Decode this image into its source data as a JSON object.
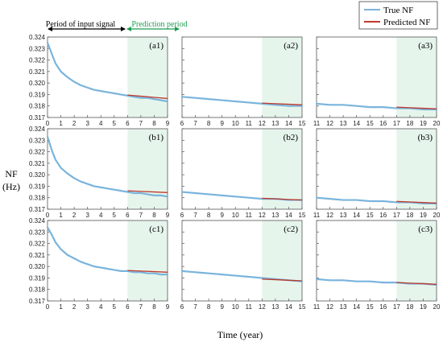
{
  "figure": {
    "ylabel_line1": "NF",
    "ylabel_line2": "(Hz)",
    "xlabel": "Time (year)",
    "input_period_label": "Period of input signal",
    "prediction_period_label": "Prediction period",
    "colors": {
      "true": "#7ab4dc",
      "predicted": "#c0392b",
      "prediction_shade": "#e6f5ec",
      "prediction_text": "#1e9c52",
      "arrow_black": "#000000",
      "arrow_green": "#1e9c52"
    }
  },
  "chart_data": {
    "type": "line",
    "legend": {
      "position": "top-right",
      "entries": [
        {
          "label": "True NF",
          "color": "#7ab4dc"
        },
        {
          "label": "Predicted NF",
          "color": "#c0392b"
        }
      ]
    },
    "ylim": [
      0.317,
      0.324
    ],
    "yticks": [
      0.317,
      0.318,
      0.319,
      0.32,
      0.321,
      0.322,
      0.323,
      0.324
    ],
    "ytick_labels": [
      "0.317",
      "0.318",
      "0.319",
      "0.320",
      "0.321",
      "0.322",
      "0.323",
      "0.324"
    ],
    "grid": false,
    "panels": [
      {
        "label": "(a1)",
        "xlim": [
          0,
          9
        ],
        "xticks": [
          0,
          1,
          2,
          3,
          4,
          5,
          6,
          7,
          8,
          9
        ],
        "prediction_start": 6,
        "true_x": [
          0,
          0.3,
          0.6,
          1,
          1.5,
          2,
          2.5,
          3,
          3.5,
          4,
          4.5,
          5,
          5.5,
          6,
          6.5,
          7,
          7.5,
          8,
          8.5,
          9
        ],
        "true_y": [
          0.3235,
          0.3226,
          0.3217,
          0.321,
          0.3205,
          0.3201,
          0.3198,
          0.3196,
          0.3194,
          0.3193,
          0.3192,
          0.3191,
          0.319,
          0.3189,
          0.3188,
          0.3187,
          0.3187,
          0.3186,
          0.3185,
          0.3184
        ],
        "pred_x": [
          6,
          7,
          8,
          9
        ],
        "pred_y": [
          0.31895,
          0.31885,
          0.31875,
          0.31865
        ]
      },
      {
        "label": "(a2)",
        "xlim": [
          6,
          15
        ],
        "xticks": [
          6,
          7,
          8,
          9,
          10,
          11,
          12,
          13,
          14,
          15
        ],
        "prediction_start": 12,
        "true_x": [
          6,
          7,
          8,
          9,
          10,
          11,
          12,
          13,
          14,
          15
        ],
        "true_y": [
          0.3188,
          0.3187,
          0.3186,
          0.3185,
          0.3184,
          0.3183,
          0.3182,
          0.3181,
          0.318,
          0.318
        ],
        "pred_x": [
          12,
          13,
          14,
          15
        ],
        "pred_y": [
          0.31825,
          0.3182,
          0.31815,
          0.3181
        ]
      },
      {
        "label": "(a3)",
        "xlim": [
          11,
          20
        ],
        "xticks": [
          11,
          12,
          13,
          14,
          15,
          16,
          17,
          18,
          19,
          20
        ],
        "prediction_start": 17,
        "true_x": [
          11,
          12,
          13,
          14,
          15,
          16,
          17,
          18,
          19,
          20
        ],
        "true_y": [
          0.3182,
          0.3181,
          0.3181,
          0.318,
          0.3179,
          0.3179,
          0.3178,
          0.3178,
          0.3177,
          0.3177
        ],
        "pred_x": [
          17,
          18,
          19,
          20
        ],
        "pred_y": [
          0.3179,
          0.31785,
          0.3178,
          0.31775
        ]
      },
      {
        "label": "(b1)",
        "xlim": [
          0,
          9
        ],
        "xticks": [
          0,
          1,
          2,
          3,
          4,
          5,
          6,
          7,
          8,
          9
        ],
        "prediction_start": 6,
        "true_x": [
          0,
          0.3,
          0.6,
          1,
          1.5,
          2,
          2.5,
          3,
          3.5,
          4,
          4.5,
          5,
          5.5,
          6,
          6.5,
          7,
          7.5,
          8,
          8.5,
          9
        ],
        "true_y": [
          0.3233,
          0.3222,
          0.3213,
          0.3206,
          0.3201,
          0.3197,
          0.3194,
          0.3192,
          0.319,
          0.3189,
          0.3188,
          0.3187,
          0.3186,
          0.3185,
          0.3184,
          0.3184,
          0.3183,
          0.3182,
          0.3182,
          0.3181
        ],
        "pred_x": [
          6,
          7,
          8,
          9
        ],
        "pred_y": [
          0.3186,
          0.31855,
          0.3185,
          0.31845
        ]
      },
      {
        "label": "(b2)",
        "xlim": [
          6,
          15
        ],
        "xticks": [
          6,
          7,
          8,
          9,
          10,
          11,
          12,
          13,
          14,
          15
        ],
        "prediction_start": 12,
        "true_x": [
          6,
          7,
          8,
          9,
          10,
          11,
          12,
          13,
          14,
          15
        ],
        "true_y": [
          0.3185,
          0.3184,
          0.3183,
          0.3182,
          0.3181,
          0.318,
          0.3179,
          0.3179,
          0.3178,
          0.3178
        ],
        "pred_x": [
          12,
          13,
          14,
          15
        ],
        "pred_y": [
          0.31795,
          0.3179,
          0.31785,
          0.3178
        ]
      },
      {
        "label": "(b3)",
        "xlim": [
          11,
          20
        ],
        "xticks": [
          11,
          12,
          13,
          14,
          15,
          16,
          17,
          18,
          19,
          20
        ],
        "prediction_start": 17,
        "true_x": [
          11,
          12,
          13,
          14,
          15,
          16,
          17,
          18,
          19,
          20
        ],
        "true_y": [
          0.318,
          0.3179,
          0.3178,
          0.3178,
          0.3177,
          0.3177,
          0.3176,
          0.3176,
          0.3175,
          0.3175
        ],
        "pred_x": [
          17,
          18,
          19,
          20
        ],
        "pred_y": [
          0.31768,
          0.31763,
          0.31758,
          0.31753
        ]
      },
      {
        "label": "(c1)",
        "xlim": [
          0,
          9
        ],
        "xticks": [
          0,
          1,
          2,
          3,
          4,
          5,
          6,
          7,
          8,
          9
        ],
        "prediction_start": 6,
        "true_x": [
          0,
          0.3,
          0.6,
          1,
          1.5,
          2,
          2.5,
          3,
          3.5,
          4,
          4.5,
          5,
          5.5,
          6,
          6.5,
          7,
          7.5,
          8,
          8.5,
          9
        ],
        "true_y": [
          0.3234,
          0.3228,
          0.3221,
          0.3215,
          0.321,
          0.3207,
          0.3204,
          0.3202,
          0.32,
          0.3199,
          0.3198,
          0.3197,
          0.3196,
          0.3196,
          0.3195,
          0.3195,
          0.3194,
          0.3194,
          0.3193,
          0.3193
        ],
        "pred_x": [
          6,
          7,
          8,
          9
        ],
        "pred_y": [
          0.31965,
          0.3196,
          0.31955,
          0.3195
        ]
      },
      {
        "label": "(c2)",
        "xlim": [
          6,
          15
        ],
        "xticks": [
          6,
          7,
          8,
          9,
          10,
          11,
          12,
          13,
          14,
          15
        ],
        "prediction_start": 12,
        "true_x": [
          6,
          7,
          8,
          9,
          10,
          11,
          12,
          13,
          14,
          15
        ],
        "true_y": [
          0.3196,
          0.3195,
          0.3194,
          0.3193,
          0.3192,
          0.3191,
          0.319,
          0.3189,
          0.3188,
          0.3187
        ],
        "pred_x": [
          12,
          13,
          14,
          15
        ],
        "pred_y": [
          0.3189,
          0.31885,
          0.3188,
          0.31875
        ]
      },
      {
        "label": "(c3)",
        "xlim": [
          11,
          20
        ],
        "xticks": [
          11,
          12,
          13,
          14,
          15,
          16,
          17,
          18,
          19,
          20
        ],
        "prediction_start": 17,
        "true_x": [
          11,
          12,
          13,
          14,
          15,
          16,
          17,
          18,
          19,
          20
        ],
        "true_y": [
          0.3189,
          0.3188,
          0.3188,
          0.3187,
          0.3187,
          0.3186,
          0.3186,
          0.3185,
          0.3185,
          0.3184
        ],
        "pred_x": [
          17,
          18,
          19,
          20
        ],
        "pred_y": [
          0.3186,
          0.31855,
          0.3185,
          0.31845
        ]
      }
    ]
  }
}
